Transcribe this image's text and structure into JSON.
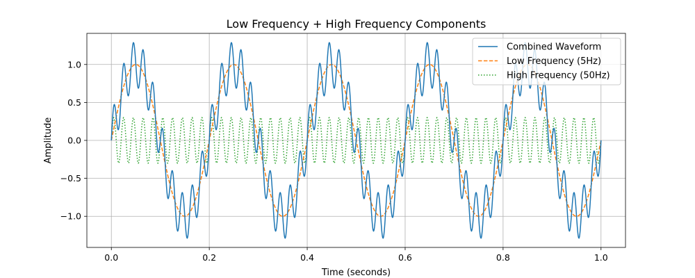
{
  "chart_data": {
    "type": "line",
    "title": "Low Frequency + High Frequency Components",
    "xlabel": "Time (seconds)",
    "ylabel": "Amplitude",
    "xlim": [
      -0.05,
      1.05
    ],
    "ylim": [
      -1.41,
      1.41
    ],
    "xticks": [
      0.0,
      0.2,
      0.4,
      0.6,
      0.8,
      1.0
    ],
    "xtick_labels": [
      "0.0",
      "0.2",
      "0.4",
      "0.6",
      "0.8",
      "1.0"
    ],
    "yticks": [
      -1.0,
      -0.5,
      0.0,
      0.5,
      1.0
    ],
    "ytick_labels": [
      "−1.0",
      "−0.5",
      "0.0",
      "0.5",
      "1.0"
    ],
    "grid": true,
    "legend_position": "top-right",
    "time_range": [
      0,
      1
    ],
    "series": [
      {
        "name": "Combined Waveform",
        "formula": "sin(2π·5t) + 0.3·sin(2π·50t)",
        "frequency_hz": [
          5,
          50
        ],
        "amplitude": [
          1.0,
          0.3
        ],
        "color": "#1f77b4",
        "style": "solid"
      },
      {
        "name": "Low Frequency (5Hz)",
        "formula": "sin(2π·5t)",
        "frequency_hz": 5,
        "amplitude": 1.0,
        "color": "#ff7f0e",
        "style": "dashed"
      },
      {
        "name": "High Frequency (50Hz)",
        "formula": "0.3·sin(2π·50t)",
        "frequency_hz": 50,
        "amplitude": 0.3,
        "color": "#2ca02c",
        "style": "dotted"
      }
    ]
  }
}
